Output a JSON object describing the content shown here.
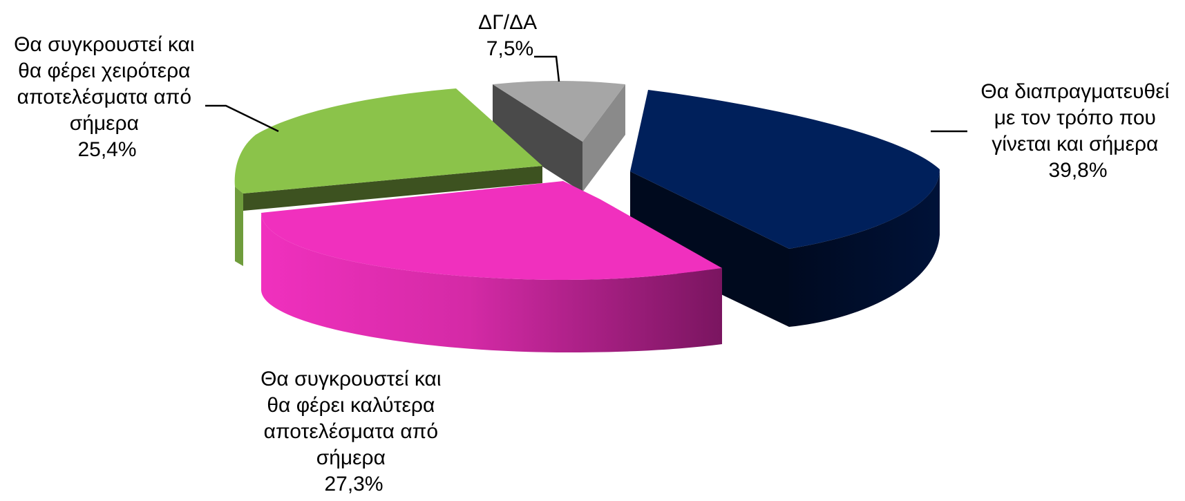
{
  "chart_data": {
    "type": "pie",
    "three_d": true,
    "exploded": true,
    "legend": "none",
    "slices": [
      {
        "label_lines": [
          "Θα διαπραγματευθεί",
          "με τον τρόπο που",
          "γίνεται και σήμερα"
        ],
        "value": 39.8,
        "value_label": "39,8%",
        "color": "#00205b"
      },
      {
        "label_lines": [
          "Θα συγκρουστεί και",
          "θα φέρει καλύτερα",
          "αποτελέσματα από",
          "σήμερα"
        ],
        "value": 27.3,
        "value_label": "27,3%",
        "color": "#f030be"
      },
      {
        "label_lines": [
          "Θα συγκρουστεί και",
          "θα φέρει χειρότερα",
          "αποτελέσματα από",
          "σήμερα"
        ],
        "value": 25.4,
        "value_label": "25,4%",
        "color": "#8bc34a"
      },
      {
        "label_lines": [
          "ΔΓ/ΔΑ"
        ],
        "value": 7.5,
        "value_label": "7,5%",
        "color": "#a6a6a6"
      }
    ]
  }
}
